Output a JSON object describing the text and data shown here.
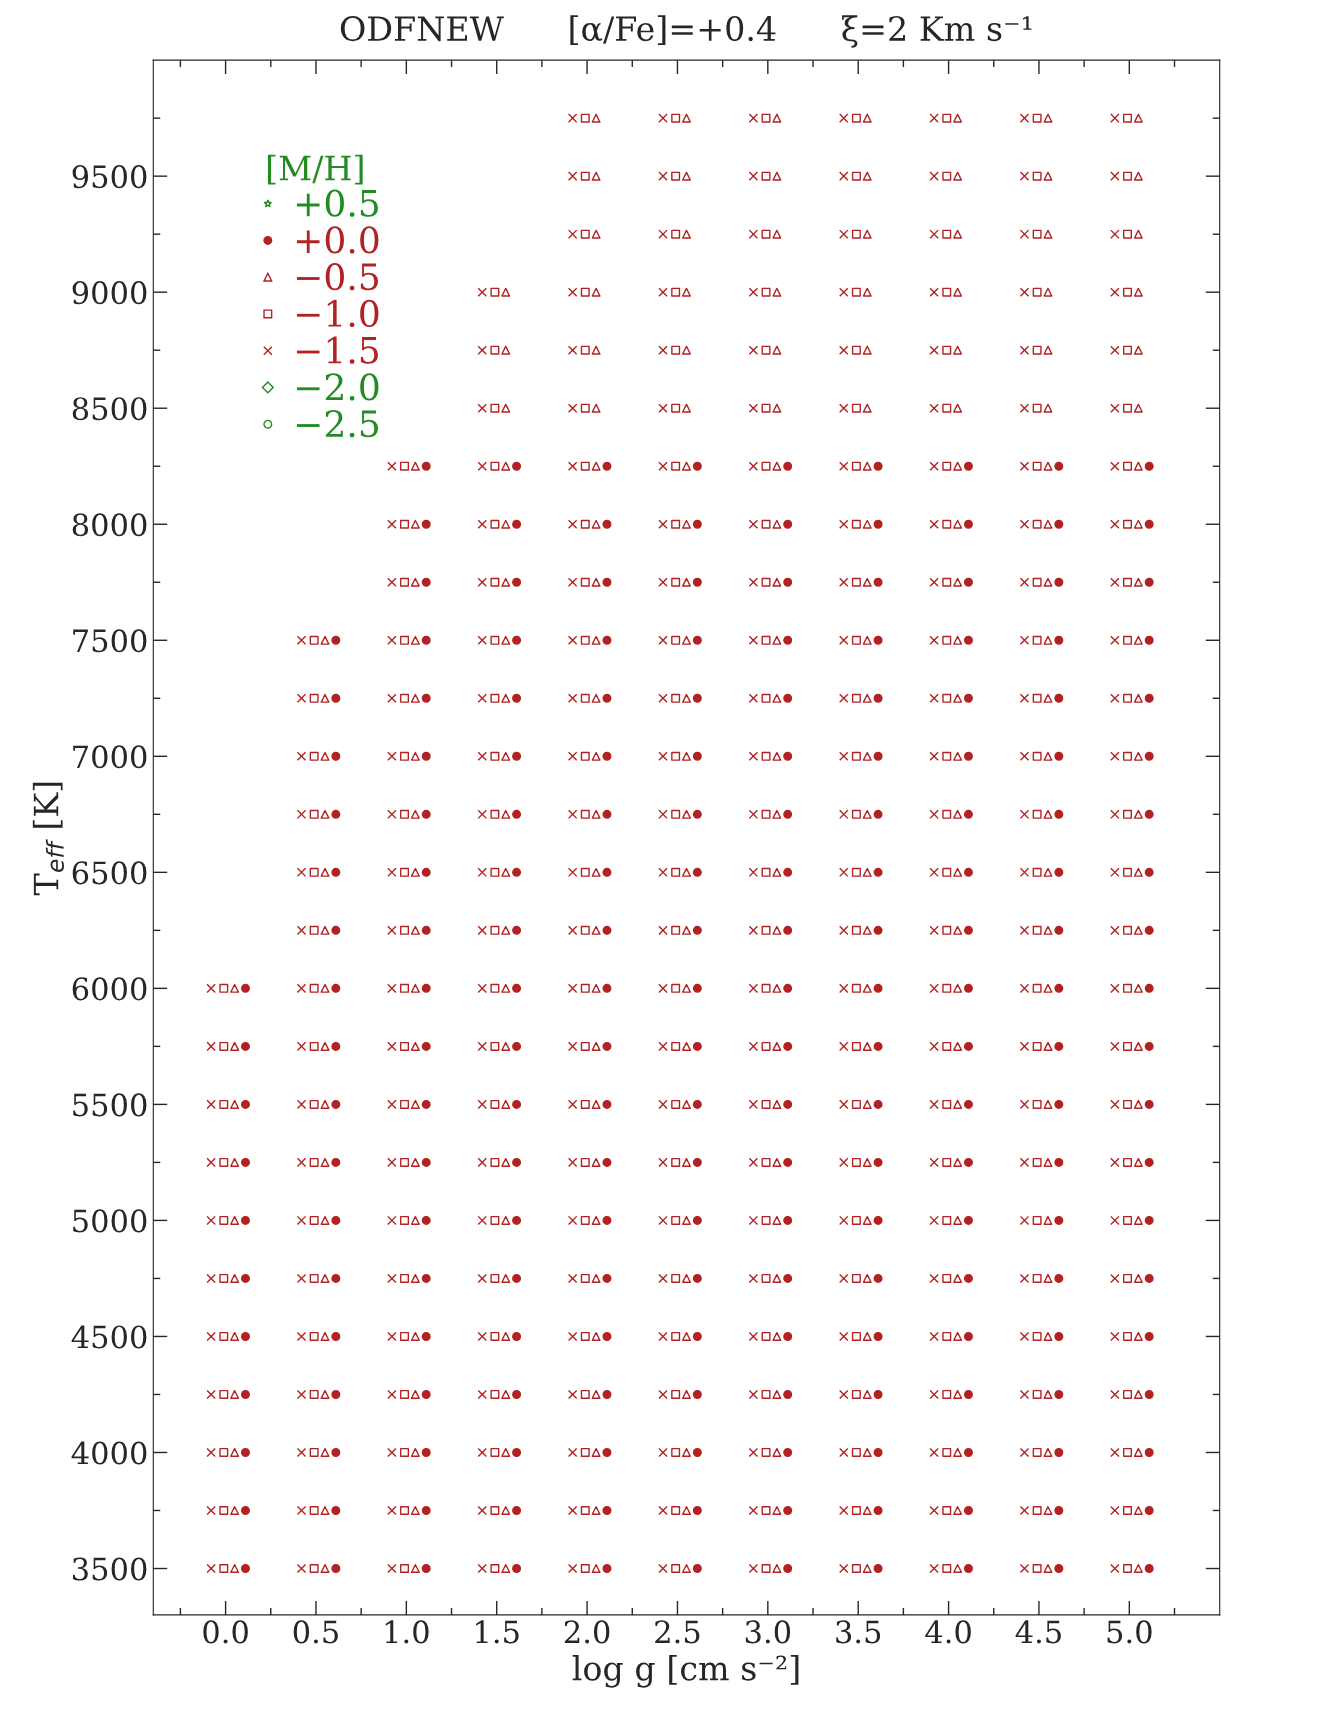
{
  "chart_data": {
    "type": "scatter",
    "title": "ODFNEW      [α/Fe]=+0.4      ξ=2 Km s⁻¹",
    "xlabel": "log g [cm s⁻²]",
    "ylabel": "T$_{eff}$ [K]",
    "legend_title": "[M/H]",
    "legend": "top left",
    "grid": false,
    "xlim": [
      -0.4,
      5.5
    ],
    "ylim": [
      3300,
      10000
    ],
    "xticks": [
      {
        "value": -0.25,
        "label": null
      },
      {
        "value": 0,
        "label": "0.0"
      },
      {
        "value": 0.25,
        "label": null
      },
      {
        "value": 0.5,
        "label": "0.5"
      },
      {
        "value": 0.75,
        "label": null
      },
      {
        "value": 1,
        "label": "1.0"
      },
      {
        "value": 1.25,
        "label": null
      },
      {
        "value": 1.5,
        "label": "1.5"
      },
      {
        "value": 1.75,
        "label": null
      },
      {
        "value": 2,
        "label": "2.0"
      },
      {
        "value": 2.25,
        "label": null
      },
      {
        "value": 2.5,
        "label": "2.5"
      },
      {
        "value": 2.75,
        "label": null
      },
      {
        "value": 3,
        "label": "3.0"
      },
      {
        "value": 3.25,
        "label": null
      },
      {
        "value": 3.5,
        "label": "3.5"
      },
      {
        "value": 3.75,
        "label": null
      },
      {
        "value": 4,
        "label": "4.0"
      },
      {
        "value": 4.25,
        "label": null
      },
      {
        "value": 4.5,
        "label": "4.5"
      },
      {
        "value": 4.75,
        "label": null
      },
      {
        "value": 5,
        "label": "5.0"
      },
      {
        "value": 5.25,
        "label": null
      }
    ],
    "yticks": [
      3500,
      {
        "value": 3750,
        "label": null
      },
      4000,
      {
        "value": 4250,
        "label": null
      },
      4500,
      {
        "value": 4750,
        "label": null
      },
      5000,
      {
        "value": 5250,
        "label": null
      },
      5500,
      {
        "value": 5750,
        "label": null
      },
      6000,
      {
        "value": 6250,
        "label": null
      },
      6500,
      {
        "value": 6750,
        "label": null
      },
      7000,
      {
        "value": 7250,
        "label": null
      },
      7500,
      {
        "value": 7750,
        "label": null
      },
      8000,
      {
        "value": 8250,
        "label": null
      },
      8500,
      {
        "value": 8750,
        "label": null
      },
      9000,
      {
        "value": 9250,
        "label": null
      },
      9500,
      {
        "value": 9750,
        "label": null
      }
    ],
    "series": [
      {
        "name": "+0.5",
        "color": "#228b22",
        "marker": "star"
      },
      {
        "name": "+0.0",
        "color": "#b22222",
        "marker": "circle",
        "x": [
          0.11,
          0.11,
          0.11,
          0.11,
          0.11,
          0.11,
          0.11,
          0.11,
          0.11,
          0.11,
          0.11,
          0.61,
          0.61,
          0.61,
          0.61,
          0.61,
          0.61,
          0.61,
          0.61,
          0.61,
          0.61,
          0.61,
          0.61,
          0.61,
          0.61,
          0.61,
          0.61,
          0.61,
          1.11,
          1.11,
          1.11,
          1.11,
          1.11,
          1.11,
          1.11,
          1.11,
          1.11,
          1.11,
          1.11,
          1.11,
          1.11,
          1.11,
          1.11,
          1.11,
          1.11,
          1.11,
          1.11,
          1.11,
          1.61,
          1.61,
          1.61,
          1.61,
          1.61,
          1.61,
          1.61,
          1.61,
          1.61,
          1.61,
          1.61,
          1.61,
          1.61,
          1.61,
          1.61,
          1.61,
          1.61,
          1.61,
          1.61,
          1.61,
          2.11,
          2.11,
          2.11,
          2.11,
          2.11,
          2.11,
          2.11,
          2.11,
          2.11,
          2.11,
          2.11,
          2.11,
          2.11,
          2.11,
          2.11,
          2.11,
          2.11,
          2.11,
          2.11,
          2.11,
          2.61,
          2.61,
          2.61,
          2.61,
          2.61,
          2.61,
          2.61,
          2.61,
          2.61,
          2.61,
          2.61,
          2.61,
          2.61,
          2.61,
          2.61,
          2.61,
          2.61,
          2.61,
          2.61,
          2.61,
          3.11,
          3.11,
          3.11,
          3.11,
          3.11,
          3.11,
          3.11,
          3.11,
          3.11,
          3.11,
          3.11,
          3.11,
          3.11,
          3.11,
          3.11,
          3.11,
          3.11,
          3.11,
          3.11,
          3.11,
          3.61,
          3.61,
          3.61,
          3.61,
          3.61,
          3.61,
          3.61,
          3.61,
          3.61,
          3.61,
          3.61,
          3.61,
          3.61,
          3.61,
          3.61,
          3.61,
          3.61,
          3.61,
          3.61,
          3.61,
          4.11,
          4.11,
          4.11,
          4.11,
          4.11,
          4.11,
          4.11,
          4.11,
          4.11,
          4.11,
          4.11,
          4.11,
          4.11,
          4.11,
          4.11,
          4.11,
          4.11,
          4.11,
          4.11,
          4.11,
          4.61,
          4.61,
          4.61,
          4.61,
          4.61,
          4.61,
          4.61,
          4.61,
          4.61,
          4.61,
          4.61,
          4.61,
          4.61,
          4.61,
          4.61,
          4.61,
          4.61,
          4.61,
          4.61,
          4.61,
          5.11,
          5.11,
          5.11,
          5.11,
          5.11,
          5.11,
          5.11,
          5.11,
          5.11,
          5.11,
          5.11,
          5.11,
          5.11,
          5.11,
          5.11,
          5.11,
          5.11,
          5.11,
          5.11,
          5.11
        ],
        "values": [
          3500,
          3750,
          4000,
          4250,
          4500,
          4750,
          5000,
          5250,
          5500,
          5750,
          6000,
          3500,
          3750,
          4000,
          4250,
          4500,
          4750,
          5000,
          5250,
          5500,
          5750,
          6000,
          6250,
          6500,
          6750,
          7000,
          7250,
          7500,
          3500,
          3750,
          4000,
          4250,
          4500,
          4750,
          5000,
          5250,
          5500,
          5750,
          6000,
          6250,
          6500,
          6750,
          7000,
          7250,
          7500,
          7750,
          8000,
          8250,
          3500,
          3750,
          4000,
          4250,
          4500,
          4750,
          5000,
          5250,
          5500,
          5750,
          6000,
          6250,
          6500,
          6750,
          7000,
          7250,
          7500,
          7750,
          8000,
          8250,
          3500,
          3750,
          4000,
          4250,
          4500,
          4750,
          5000,
          5250,
          5500,
          5750,
          6000,
          6250,
          6500,
          6750,
          7000,
          7250,
          7500,
          7750,
          8000,
          8250,
          3500,
          3750,
          4000,
          4250,
          4500,
          4750,
          5000,
          5250,
          5500,
          5750,
          6000,
          6250,
          6500,
          6750,
          7000,
          7250,
          7500,
          7750,
          8000,
          8250,
          3500,
          3750,
          4000,
          4250,
          4500,
          4750,
          5000,
          5250,
          5500,
          5750,
          6000,
          6250,
          6500,
          6750,
          7000,
          7250,
          7500,
          7750,
          8000,
          8250,
          3500,
          3750,
          4000,
          4250,
          4500,
          4750,
          5000,
          5250,
          5500,
          5750,
          6000,
          6250,
          6500,
          6750,
          7000,
          7250,
          7500,
          7750,
          8000,
          8250,
          3500,
          3750,
          4000,
          4250,
          4500,
          4750,
          5000,
          5250,
          5500,
          5750,
          6000,
          6250,
          6500,
          6750,
          7000,
          7250,
          7500,
          7750,
          8000,
          8250,
          3500,
          3750,
          4000,
          4250,
          4500,
          4750,
          5000,
          5250,
          5500,
          5750,
          6000,
          6250,
          6500,
          6750,
          7000,
          7250,
          7500,
          7750,
          8000,
          8250,
          3500,
          3750,
          4000,
          4250,
          4500,
          4750,
          5000,
          5250,
          5500,
          5750,
          6000,
          6250,
          6500,
          6750,
          7000,
          7250,
          7500,
          7750,
          8000,
          8250
        ]
      },
      {
        "name": "−0.5",
        "color": "#b22222",
        "marker": "triangle",
        "x": [
          0.05,
          0.05,
          0.05,
          0.05,
          0.05,
          0.05,
          0.05,
          0.05,
          0.05,
          0.05,
          0.05,
          0.55,
          0.55,
          0.55,
          0.55,
          0.55,
          0.55,
          0.55,
          0.55,
          0.55,
          0.55,
          0.55,
          0.55,
          0.55,
          0.55,
          0.55,
          0.55,
          0.55,
          1.05,
          1.05,
          1.05,
          1.05,
          1.05,
          1.05,
          1.05,
          1.05,
          1.05,
          1.05,
          1.05,
          1.05,
          1.05,
          1.05,
          1.05,
          1.05,
          1.05,
          1.05,
          1.05,
          1.05,
          1.55,
          1.55,
          1.55,
          1.55,
          1.55,
          1.55,
          1.55,
          1.55,
          1.55,
          1.55,
          1.55,
          1.55,
          1.55,
          1.55,
          1.55,
          1.55,
          1.55,
          1.55,
          1.55,
          1.55,
          1.55,
          1.55,
          1.55,
          2.05,
          2.05,
          2.05,
          2.05,
          2.05,
          2.05,
          2.05,
          2.05,
          2.05,
          2.05,
          2.05,
          2.05,
          2.05,
          2.05,
          2.05,
          2.05,
          2.05,
          2.05,
          2.05,
          2.05,
          2.05,
          2.05,
          2.05,
          2.05,
          2.05,
          2.05,
          2.55,
          2.55,
          2.55,
          2.55,
          2.55,
          2.55,
          2.55,
          2.55,
          2.55,
          2.55,
          2.55,
          2.55,
          2.55,
          2.55,
          2.55,
          2.55,
          2.55,
          2.55,
          2.55,
          2.55,
          2.55,
          2.55,
          2.55,
          2.55,
          2.55,
          2.55,
          3.05,
          3.05,
          3.05,
          3.05,
          3.05,
          3.05,
          3.05,
          3.05,
          3.05,
          3.05,
          3.05,
          3.05,
          3.05,
          3.05,
          3.05,
          3.05,
          3.05,
          3.05,
          3.05,
          3.05,
          3.05,
          3.05,
          3.05,
          3.05,
          3.05,
          3.05,
          3.55,
          3.55,
          3.55,
          3.55,
          3.55,
          3.55,
          3.55,
          3.55,
          3.55,
          3.55,
          3.55,
          3.55,
          3.55,
          3.55,
          3.55,
          3.55,
          3.55,
          3.55,
          3.55,
          3.55,
          3.55,
          3.55,
          3.55,
          3.55,
          3.55,
          3.55,
          4.05,
          4.05,
          4.05,
          4.05,
          4.05,
          4.05,
          4.05,
          4.05,
          4.05,
          4.05,
          4.05,
          4.05,
          4.05,
          4.05,
          4.05,
          4.05,
          4.05,
          4.05,
          4.05,
          4.05,
          4.05,
          4.05,
          4.05,
          4.05,
          4.05,
          4.05,
          4.55,
          4.55,
          4.55,
          4.55,
          4.55,
          4.55,
          4.55,
          4.55,
          4.55,
          4.55,
          4.55,
          4.55,
          4.55,
          4.55,
          4.55,
          4.55,
          4.55,
          4.55,
          4.55,
          4.55,
          4.55,
          4.55,
          4.55,
          4.55,
          4.55,
          4.55,
          5.05,
          5.05,
          5.05,
          5.05,
          5.05,
          5.05,
          5.05,
          5.05,
          5.05,
          5.05,
          5.05,
          5.05,
          5.05,
          5.05,
          5.05,
          5.05,
          5.05,
          5.05,
          5.05,
          5.05,
          5.05,
          5.05,
          5.05,
          5.05,
          5.05,
          5.05
        ],
        "values": [
          3500,
          3750,
          4000,
          4250,
          4500,
          4750,
          5000,
          5250,
          5500,
          5750,
          6000,
          3500,
          3750,
          4000,
          4250,
          4500,
          4750,
          5000,
          5250,
          5500,
          5750,
          6000,
          6250,
          6500,
          6750,
          7000,
          7250,
          7500,
          3500,
          3750,
          4000,
          4250,
          4500,
          4750,
          5000,
          5250,
          5500,
          5750,
          6000,
          6250,
          6500,
          6750,
          7000,
          7250,
          7500,
          7750,
          8000,
          8250,
          3500,
          3750,
          4000,
          4250,
          4500,
          4750,
          5000,
          5250,
          5500,
          5750,
          6000,
          6250,
          6500,
          6750,
          7000,
          7250,
          7500,
          7750,
          8000,
          8250,
          8500,
          8750,
          9000,
          3500,
          3750,
          4000,
          4250,
          4500,
          4750,
          5000,
          5250,
          5500,
          5750,
          6000,
          6250,
          6500,
          6750,
          7000,
          7250,
          7500,
          7750,
          8000,
          8250,
          8500,
          8750,
          9000,
          9250,
          9500,
          9750,
          3500,
          3750,
          4000,
          4250,
          4500,
          4750,
          5000,
          5250,
          5500,
          5750,
          6000,
          6250,
          6500,
          6750,
          7000,
          7250,
          7500,
          7750,
          8000,
          8250,
          8500,
          8750,
          9000,
          9250,
          9500,
          9750,
          3500,
          3750,
          4000,
          4250,
          4500,
          4750,
          5000,
          5250,
          5500,
          5750,
          6000,
          6250,
          6500,
          6750,
          7000,
          7250,
          7500,
          7750,
          8000,
          8250,
          8500,
          8750,
          9000,
          9250,
          9500,
          9750,
          3500,
          3750,
          4000,
          4250,
          4500,
          4750,
          5000,
          5250,
          5500,
          5750,
          6000,
          6250,
          6500,
          6750,
          7000,
          7250,
          7500,
          7750,
          8000,
          8250,
          8500,
          8750,
          9000,
          9250,
          9500,
          9750,
          3500,
          3750,
          4000,
          4250,
          4500,
          4750,
          5000,
          5250,
          5500,
          5750,
          6000,
          6250,
          6500,
          6750,
          7000,
          7250,
          7500,
          7750,
          8000,
          8250,
          8500,
          8750,
          9000,
          9250,
          9500,
          9750,
          3500,
          3750,
          4000,
          4250,
          4500,
          4750,
          5000,
          5250,
          5500,
          5750,
          6000,
          6250,
          6500,
          6750,
          7000,
          7250,
          7500,
          7750,
          8000,
          8250,
          8500,
          8750,
          9000,
          9250,
          9500,
          9750,
          3500,
          3750,
          4000,
          4250,
          4500,
          4750,
          5000,
          5250,
          5500,
          5750,
          6000,
          6250,
          6500,
          6750,
          7000,
          7250,
          7500,
          7750,
          8000,
          8250,
          8500,
          8750,
          9000,
          9250,
          9500,
          9750
        ]
      },
      {
        "name": "−1.0",
        "color": "#b22222",
        "marker": "square",
        "x": [
          -0.01,
          -0.01,
          -0.01,
          -0.01,
          -0.01,
          -0.01,
          -0.01,
          -0.01,
          -0.01,
          -0.01,
          -0.01,
          0.49,
          0.49,
          0.49,
          0.49,
          0.49,
          0.49,
          0.49,
          0.49,
          0.49,
          0.49,
          0.49,
          0.49,
          0.49,
          0.49,
          0.49,
          0.49,
          0.49,
          0.99,
          0.99,
          0.99,
          0.99,
          0.99,
          0.99,
          0.99,
          0.99,
          0.99,
          0.99,
          0.99,
          0.99,
          0.99,
          0.99,
          0.99,
          0.99,
          0.99,
          0.99,
          0.99,
          0.99,
          1.49,
          1.49,
          1.49,
          1.49,
          1.49,
          1.49,
          1.49,
          1.49,
          1.49,
          1.49,
          1.49,
          1.49,
          1.49,
          1.49,
          1.49,
          1.49,
          1.49,
          1.49,
          1.49,
          1.49,
          1.49,
          1.49,
          1.49,
          1.99,
          1.99,
          1.99,
          1.99,
          1.99,
          1.99,
          1.99,
          1.99,
          1.99,
          1.99,
          1.99,
          1.99,
          1.99,
          1.99,
          1.99,
          1.99,
          1.99,
          1.99,
          1.99,
          1.99,
          1.99,
          1.99,
          1.99,
          1.99,
          1.99,
          1.99,
          2.49,
          2.49,
          2.49,
          2.49,
          2.49,
          2.49,
          2.49,
          2.49,
          2.49,
          2.49,
          2.49,
          2.49,
          2.49,
          2.49,
          2.49,
          2.49,
          2.49,
          2.49,
          2.49,
          2.49,
          2.49,
          2.49,
          2.49,
          2.49,
          2.49,
          2.49,
          2.99,
          2.99,
          2.99,
          2.99,
          2.99,
          2.99,
          2.99,
          2.99,
          2.99,
          2.99,
          2.99,
          2.99,
          2.99,
          2.99,
          2.99,
          2.99,
          2.99,
          2.99,
          2.99,
          2.99,
          2.99,
          2.99,
          2.99,
          2.99,
          2.99,
          2.99,
          3.49,
          3.49,
          3.49,
          3.49,
          3.49,
          3.49,
          3.49,
          3.49,
          3.49,
          3.49,
          3.49,
          3.49,
          3.49,
          3.49,
          3.49,
          3.49,
          3.49,
          3.49,
          3.49,
          3.49,
          3.49,
          3.49,
          3.49,
          3.49,
          3.49,
          3.49,
          3.99,
          3.99,
          3.99,
          3.99,
          3.99,
          3.99,
          3.99,
          3.99,
          3.99,
          3.99,
          3.99,
          3.99,
          3.99,
          3.99,
          3.99,
          3.99,
          3.99,
          3.99,
          3.99,
          3.99,
          3.99,
          3.99,
          3.99,
          3.99,
          3.99,
          3.99,
          4.49,
          4.49,
          4.49,
          4.49,
          4.49,
          4.49,
          4.49,
          4.49,
          4.49,
          4.49,
          4.49,
          4.49,
          4.49,
          4.49,
          4.49,
          4.49,
          4.49,
          4.49,
          4.49,
          4.49,
          4.49,
          4.49,
          4.49,
          4.49,
          4.49,
          4.49,
          4.99,
          4.99,
          4.99,
          4.99,
          4.99,
          4.99,
          4.99,
          4.99,
          4.99,
          4.99,
          4.99,
          4.99,
          4.99,
          4.99,
          4.99,
          4.99,
          4.99,
          4.99,
          4.99,
          4.99,
          4.99,
          4.99,
          4.99,
          4.99,
          4.99,
          4.99
        ],
        "values": [
          3500,
          3750,
          4000,
          4250,
          4500,
          4750,
          5000,
          5250,
          5500,
          5750,
          6000,
          3500,
          3750,
          4000,
          4250,
          4500,
          4750,
          5000,
          5250,
          5500,
          5750,
          6000,
          6250,
          6500,
          6750,
          7000,
          7250,
          7500,
          3500,
          3750,
          4000,
          4250,
          4500,
          4750,
          5000,
          5250,
          5500,
          5750,
          6000,
          6250,
          6500,
          6750,
          7000,
          7250,
          7500,
          7750,
          8000,
          8250,
          3500,
          3750,
          4000,
          4250,
          4500,
          4750,
          5000,
          5250,
          5500,
          5750,
          6000,
          6250,
          6500,
          6750,
          7000,
          7250,
          7500,
          7750,
          8000,
          8250,
          8500,
          8750,
          9000,
          3500,
          3750,
          4000,
          4250,
          4500,
          4750,
          5000,
          5250,
          5500,
          5750,
          6000,
          6250,
          6500,
          6750,
          7000,
          7250,
          7500,
          7750,
          8000,
          8250,
          8500,
          8750,
          9000,
          9250,
          9500,
          9750,
          3500,
          3750,
          4000,
          4250,
          4500,
          4750,
          5000,
          5250,
          5500,
          5750,
          6000,
          6250,
          6500,
          6750,
          7000,
          7250,
          7500,
          7750,
          8000,
          8250,
          8500,
          8750,
          9000,
          9250,
          9500,
          9750,
          3500,
          3750,
          4000,
          4250,
          4500,
          4750,
          5000,
          5250,
          5500,
          5750,
          6000,
          6250,
          6500,
          6750,
          7000,
          7250,
          7500,
          7750,
          8000,
          8250,
          8500,
          8750,
          9000,
          9250,
          9500,
          9750,
          3500,
          3750,
          4000,
          4250,
          4500,
          4750,
          5000,
          5250,
          5500,
          5750,
          6000,
          6250,
          6500,
          6750,
          7000,
          7250,
          7500,
          7750,
          8000,
          8250,
          8500,
          8750,
          9000,
          9250,
          9500,
          9750,
          3500,
          3750,
          4000,
          4250,
          4500,
          4750,
          5000,
          5250,
          5500,
          5750,
          6000,
          6250,
          6500,
          6750,
          7000,
          7250,
          7500,
          7750,
          8000,
          8250,
          8500,
          8750,
          9000,
          9250,
          9500,
          9750,
          3500,
          3750,
          4000,
          4250,
          4500,
          4750,
          5000,
          5250,
          5500,
          5750,
          6000,
          6250,
          6500,
          6750,
          7000,
          7250,
          7500,
          7750,
          8000,
          8250,
          8500,
          8750,
          9000,
          9250,
          9500,
          9750,
          3500,
          3750,
          4000,
          4250,
          4500,
          4750,
          5000,
          5250,
          5500,
          5750,
          6000,
          6250,
          6500,
          6750,
          7000,
          7250,
          7500,
          7750,
          8000,
          8250,
          8500,
          8750,
          9000,
          9250,
          9500,
          9750
        ]
      },
      {
        "name": "−1.5",
        "color": "#b22222",
        "marker": "cross",
        "x": [
          -0.08,
          -0.08,
          -0.08,
          -0.08,
          -0.08,
          -0.08,
          -0.08,
          -0.08,
          -0.08,
          -0.08,
          -0.08,
          0.42,
          0.42,
          0.42,
          0.42,
          0.42,
          0.42,
          0.42,
          0.42,
          0.42,
          0.42,
          0.42,
          0.42,
          0.42,
          0.42,
          0.42,
          0.42,
          0.42,
          0.92,
          0.92,
          0.92,
          0.92,
          0.92,
          0.92,
          0.92,
          0.92,
          0.92,
          0.92,
          0.92,
          0.92,
          0.92,
          0.92,
          0.92,
          0.92,
          0.92,
          0.92,
          0.92,
          0.92,
          1.42,
          1.42,
          1.42,
          1.42,
          1.42,
          1.42,
          1.42,
          1.42,
          1.42,
          1.42,
          1.42,
          1.42,
          1.42,
          1.42,
          1.42,
          1.42,
          1.42,
          1.42,
          1.42,
          1.42,
          1.42,
          1.42,
          1.42,
          1.92,
          1.92,
          1.92,
          1.92,
          1.92,
          1.92,
          1.92,
          1.92,
          1.92,
          1.92,
          1.92,
          1.92,
          1.92,
          1.92,
          1.92,
          1.92,
          1.92,
          1.92,
          1.92,
          1.92,
          1.92,
          1.92,
          1.92,
          1.92,
          1.92,
          1.92,
          2.42,
          2.42,
          2.42,
          2.42,
          2.42,
          2.42,
          2.42,
          2.42,
          2.42,
          2.42,
          2.42,
          2.42,
          2.42,
          2.42,
          2.42,
          2.42,
          2.42,
          2.42,
          2.42,
          2.42,
          2.42,
          2.42,
          2.42,
          2.42,
          2.42,
          2.42,
          2.92,
          2.92,
          2.92,
          2.92,
          2.92,
          2.92,
          2.92,
          2.92,
          2.92,
          2.92,
          2.92,
          2.92,
          2.92,
          2.92,
          2.92,
          2.92,
          2.92,
          2.92,
          2.92,
          2.92,
          2.92,
          2.92,
          2.92,
          2.92,
          2.92,
          2.92,
          3.42,
          3.42,
          3.42,
          3.42,
          3.42,
          3.42,
          3.42,
          3.42,
          3.42,
          3.42,
          3.42,
          3.42,
          3.42,
          3.42,
          3.42,
          3.42,
          3.42,
          3.42,
          3.42,
          3.42,
          3.42,
          3.42,
          3.42,
          3.42,
          3.42,
          3.42,
          3.92,
          3.92,
          3.92,
          3.92,
          3.92,
          3.92,
          3.92,
          3.92,
          3.92,
          3.92,
          3.92,
          3.92,
          3.92,
          3.92,
          3.92,
          3.92,
          3.92,
          3.92,
          3.92,
          3.92,
          3.92,
          3.92,
          3.92,
          3.92,
          3.92,
          3.92,
          4.42,
          4.42,
          4.42,
          4.42,
          4.42,
          4.42,
          4.42,
          4.42,
          4.42,
          4.42,
          4.42,
          4.42,
          4.42,
          4.42,
          4.42,
          4.42,
          4.42,
          4.42,
          4.42,
          4.42,
          4.42,
          4.42,
          4.42,
          4.42,
          4.42,
          4.42,
          4.92,
          4.92,
          4.92,
          4.92,
          4.92,
          4.92,
          4.92,
          4.92,
          4.92,
          4.92,
          4.92,
          4.92,
          4.92,
          4.92,
          4.92,
          4.92,
          4.92,
          4.92,
          4.92,
          4.92,
          4.92,
          4.92,
          4.92,
          4.92,
          4.92,
          4.92
        ],
        "values": [
          3500,
          3750,
          4000,
          4250,
          4500,
          4750,
          5000,
          5250,
          5500,
          5750,
          6000,
          3500,
          3750,
          4000,
          4250,
          4500,
          4750,
          5000,
          5250,
          5500,
          5750,
          6000,
          6250,
          6500,
          6750,
          7000,
          7250,
          7500,
          3500,
          3750,
          4000,
          4250,
          4500,
          4750,
          5000,
          5250,
          5500,
          5750,
          6000,
          6250,
          6500,
          6750,
          7000,
          7250,
          7500,
          7750,
          8000,
          8250,
          3500,
          3750,
          4000,
          4250,
          4500,
          4750,
          5000,
          5250,
          5500,
          5750,
          6000,
          6250,
          6500,
          6750,
          7000,
          7250,
          7500,
          7750,
          8000,
          8250,
          8500,
          8750,
          9000,
          3500,
          3750,
          4000,
          4250,
          4500,
          4750,
          5000,
          5250,
          5500,
          5750,
          6000,
          6250,
          6500,
          6750,
          7000,
          7250,
          7500,
          7750,
          8000,
          8250,
          8500,
          8750,
          9000,
          9250,
          9500,
          9750,
          3500,
          3750,
          4000,
          4250,
          4500,
          4750,
          5000,
          5250,
          5500,
          5750,
          6000,
          6250,
          6500,
          6750,
          7000,
          7250,
          7500,
          7750,
          8000,
          8250,
          8500,
          8750,
          9000,
          9250,
          9500,
          9750,
          3500,
          3750,
          4000,
          4250,
          4500,
          4750,
          5000,
          5250,
          5500,
          5750,
          6000,
          6250,
          6500,
          6750,
          7000,
          7250,
          7500,
          7750,
          8000,
          8250,
          8500,
          8750,
          9000,
          9250,
          9500,
          9750,
          3500,
          3750,
          4000,
          4250,
          4500,
          4750,
          5000,
          5250,
          5500,
          5750,
          6000,
          6250,
          6500,
          6750,
          7000,
          7250,
          7500,
          7750,
          8000,
          8250,
          8500,
          8750,
          9000,
          9250,
          9500,
          9750,
          3500,
          3750,
          4000,
          4250,
          4500,
          4750,
          5000,
          5250,
          5500,
          5750,
          6000,
          6250,
          6500,
          6750,
          7000,
          7250,
          7500,
          7750,
          8000,
          8250,
          8500,
          8750,
          9000,
          9250,
          9500,
          9750,
          3500,
          3750,
          4000,
          4250,
          4500,
          4750,
          5000,
          5250,
          5500,
          5750,
          6000,
          6250,
          6500,
          6750,
          7000,
          7250,
          7500,
          7750,
          8000,
          8250,
          8500,
          8750,
          9000,
          9250,
          9500,
          9750,
          3500,
          3750,
          4000,
          4250,
          4500,
          4750,
          5000,
          5250,
          5500,
          5750,
          6000,
          6250,
          6500,
          6750,
          7000,
          7250,
          7500,
          7750,
          8000,
          8250,
          8500,
          8750,
          9000,
          9250,
          9500,
          9750
        ]
      },
      {
        "name": "−2.0",
        "color": "#228b22",
        "marker": "diamond"
      },
      {
        "name": "−2.5",
        "color": "#228b22",
        "marker": "circle"
      }
    ]
  }
}
